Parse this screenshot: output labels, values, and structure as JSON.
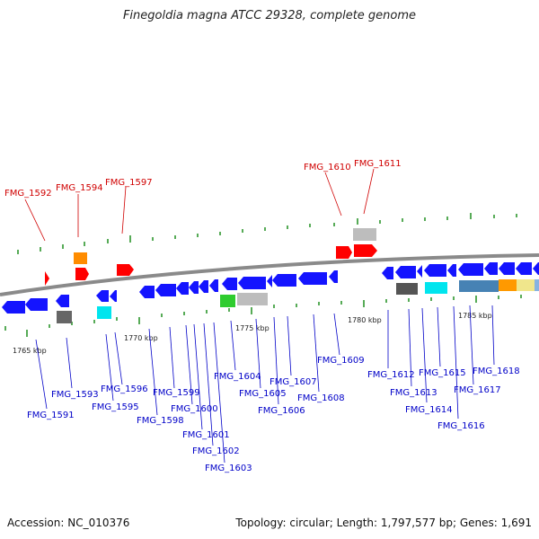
{
  "title": "Finegoldia magna ATCC 29328, complete genome",
  "footer": {
    "accession": "Accession: NC_010376",
    "summary": "Topology: circular; Length: 1,797,577 bp; Genes: 1,691"
  },
  "colors": {
    "forward_label": "#d00000",
    "reverse_label": "#0000c8",
    "blue_gene": "#1414ff",
    "red_gene": "#ff0000",
    "backbone": "#8a8a8a",
    "tick": "#1f8f1f"
  },
  "scale_labels": [
    "1765 kbp",
    "1770 kbp",
    "1775 kbp",
    "1780 kbp",
    "1785 kbp"
  ],
  "top_labels": [
    "FMG_1592",
    "FMG_1594",
    "FMG_1597",
    "FMG_1610",
    "FMG_1611"
  ],
  "bottom_labels": [
    "FMG_1591",
    "FMG_1593",
    "FMG_1595",
    "FMG_1596",
    "FMG_1598",
    "FMG_1599",
    "FMG_1600",
    "FMG_1601",
    "FMG_1602",
    "FMG_1603",
    "FMG_1604",
    "FMG_1605",
    "FMG_1606",
    "FMG_1607",
    "FMG_1608",
    "FMG_1609",
    "FMG_1612",
    "FMG_1613",
    "FMG_1614",
    "FMG_1615",
    "FMG_1616",
    "FMG_1617",
    "FMG_1618"
  ]
}
